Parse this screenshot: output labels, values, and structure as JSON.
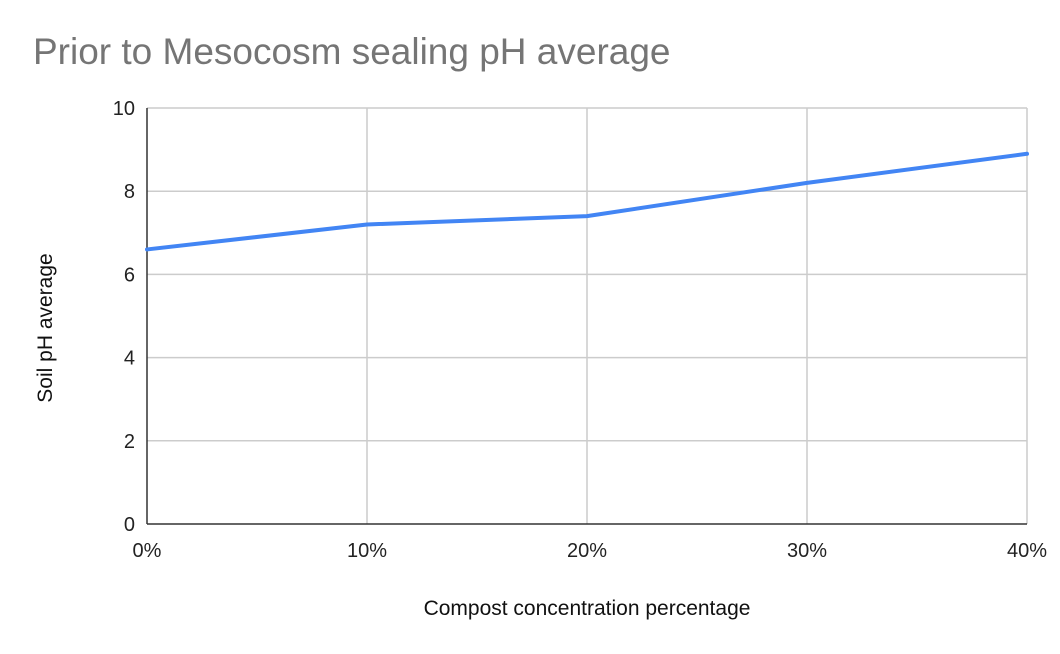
{
  "chart_data": {
    "type": "line",
    "title": "Prior to Mesocosm sealing pH average",
    "xlabel": "Compost concentration percentage",
    "ylabel": "Soil pH average",
    "categories": [
      "0%",
      "10%",
      "20%",
      "30%",
      "40%"
    ],
    "series": [
      {
        "values": [
          6.6,
          7.2,
          7.4,
          8.2,
          8.9
        ],
        "color": "#4285f4"
      }
    ],
    "ylim": [
      0,
      10
    ],
    "yticks": [
      "0",
      "2",
      "4",
      "6",
      "8",
      "10"
    ],
    "grid": true,
    "legend": "none"
  }
}
